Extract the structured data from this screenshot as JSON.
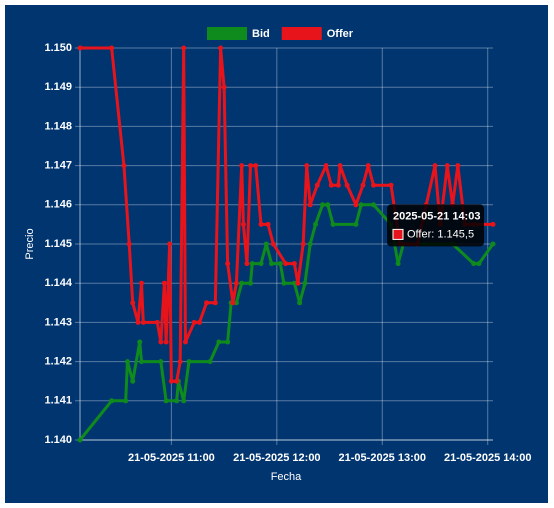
{
  "chart_data": {
    "type": "line",
    "x_label": "Fecha",
    "y_label": "Precio",
    "xlim": [
      "2025-05-21 10:08",
      "2025-05-21 14:03"
    ],
    "xticks": [
      {
        "value": "2025-05-21 11:00",
        "label": "21-05-2025 11:00"
      },
      {
        "value": "2025-05-21 12:00",
        "label": "21-05-2025 12:00"
      },
      {
        "value": "2025-05-21 13:00",
        "label": "21-05-2025 13:00"
      },
      {
        "value": "2025-05-21 14:00",
        "label": "21-05-2025 14:00"
      }
    ],
    "ylim": [
      1.14,
      1.15
    ],
    "yticks": [
      {
        "value": 1.14,
        "label": "1.140"
      },
      1.141,
      1.142,
      1.143,
      1.144,
      1.145,
      1.146,
      1.147,
      1.148,
      1.149,
      {
        "value": 1.15,
        "label": "1.150"
      }
    ],
    "grid": true,
    "legend": "top",
    "series": [
      {
        "name": "Bid",
        "color": "#0f8a1c",
        "x": [
          "2025-05-21 10:08",
          "2025-05-21 10:26",
          "2025-05-21 10:34",
          "2025-05-21 10:35",
          "2025-05-21 10:38",
          "2025-05-21 10:42",
          "2025-05-21 10:43",
          "2025-05-21 10:54",
          "2025-05-21 10:57",
          "2025-05-21 11:03",
          "2025-05-21 11:04",
          "2025-05-21 11:07",
          "2025-05-21 11:10",
          "2025-05-21 11:22",
          "2025-05-21 11:27",
          "2025-05-21 11:32",
          "2025-05-21 11:34",
          "2025-05-21 11:37",
          "2025-05-21 11:40",
          "2025-05-21 11:45",
          "2025-05-21 11:46",
          "2025-05-21 11:51",
          "2025-05-21 11:54",
          "2025-05-21 11:57",
          "2025-05-21 12:02",
          "2025-05-21 12:04",
          "2025-05-21 12:10",
          "2025-05-21 12:13",
          "2025-05-21 12:16",
          "2025-05-21 12:19",
          "2025-05-21 12:22",
          "2025-05-21 12:26",
          "2025-05-21 12:29",
          "2025-05-21 12:32",
          "2025-05-21 12:45",
          "2025-05-21 12:48",
          "2025-05-21 12:55",
          "2025-05-21 13:05",
          "2025-05-21 13:09",
          "2025-05-21 13:12",
          "2025-05-21 13:40",
          "2025-05-21 13:52",
          "2025-05-21 13:55",
          "2025-05-21 14:03"
        ],
        "values": [
          1.14,
          1.141,
          1.141,
          1.142,
          1.1415,
          1.1425,
          1.142,
          1.142,
          1.141,
          1.141,
          1.1415,
          1.141,
          1.142,
          1.142,
          1.1425,
          1.1425,
          1.1435,
          1.1435,
          1.144,
          1.144,
          1.1445,
          1.1445,
          1.145,
          1.1445,
          1.1445,
          1.144,
          1.144,
          1.1435,
          1.144,
          1.145,
          1.1455,
          1.146,
          1.146,
          1.1455,
          1.1455,
          1.146,
          1.146,
          1.1455,
          1.1445,
          1.145,
          1.145,
          1.1445,
          1.1445,
          1.145
        ]
      },
      {
        "name": "Offer",
        "color": "#e8141b",
        "x": [
          "2025-05-21 10:08",
          "2025-05-21 10:26",
          "2025-05-21 10:33",
          "2025-05-21 10:36",
          "2025-05-21 10:38",
          "2025-05-21 10:41",
          "2025-05-21 10:43",
          "2025-05-21 10:44",
          "2025-05-21 10:52",
          "2025-05-21 10:54",
          "2025-05-21 10:56",
          "2025-05-21 10:57",
          "2025-05-21 10:59",
          "2025-05-21 11:00",
          "2025-05-21 11:03",
          "2025-05-21 11:05",
          "2025-05-21 11:07",
          "2025-05-21 11:08",
          "2025-05-21 11:13",
          "2025-05-21 11:16",
          "2025-05-21 11:20",
          "2025-05-21 11:25",
          "2025-05-21 11:28",
          "2025-05-21 11:30",
          "2025-05-21 11:32",
          "2025-05-21 11:35",
          "2025-05-21 11:37",
          "2025-05-21 11:40",
          "2025-05-21 11:41",
          "2025-05-21 11:43",
          "2025-05-21 11:45",
          "2025-05-21 11:48",
          "2025-05-21 11:51",
          "2025-05-21 11:55",
          "2025-05-21 11:58",
          "2025-05-21 12:05",
          "2025-05-21 12:10",
          "2025-05-21 12:12",
          "2025-05-21 12:15",
          "2025-05-21 12:17",
          "2025-05-21 12:19",
          "2025-05-21 12:23",
          "2025-05-21 12:28",
          "2025-05-21 12:31",
          "2025-05-21 12:35",
          "2025-05-21 12:36",
          "2025-05-21 12:40",
          "2025-05-21 12:45",
          "2025-05-21 12:49",
          "2025-05-21 12:52",
          "2025-05-21 12:55",
          "2025-05-21 13:05",
          "2025-05-21 13:10",
          "2025-05-21 13:20",
          "2025-05-21 13:25",
          "2025-05-21 13:30",
          "2025-05-21 13:33",
          "2025-05-21 13:37",
          "2025-05-21 13:40",
          "2025-05-21 13:43",
          "2025-05-21 13:47",
          "2025-05-21 13:52",
          "2025-05-21 14:03"
        ],
        "values": [
          1.15,
          1.15,
          1.147,
          1.145,
          1.1435,
          1.143,
          1.144,
          1.143,
          1.143,
          1.1425,
          1.144,
          1.1425,
          1.145,
          1.1415,
          1.1415,
          1.142,
          1.15,
          1.1425,
          1.143,
          1.143,
          1.1435,
          1.1435,
          1.15,
          1.149,
          1.1445,
          1.1435,
          1.144,
          1.147,
          1.1455,
          1.1445,
          1.147,
          1.147,
          1.1455,
          1.1455,
          1.145,
          1.1445,
          1.1445,
          1.144,
          1.145,
          1.147,
          1.146,
          1.1465,
          1.147,
          1.1465,
          1.1465,
          1.147,
          1.1465,
          1.146,
          1.1465,
          1.147,
          1.1465,
          1.1465,
          1.145,
          1.145,
          1.146,
          1.147,
          1.1455,
          1.147,
          1.146,
          1.147,
          1.1455,
          1.1455,
          1.1455
        ]
      }
    ],
    "tooltip": {
      "title": "2025-05-21 14:03",
      "text": "Offer: 1.145,5"
    }
  }
}
